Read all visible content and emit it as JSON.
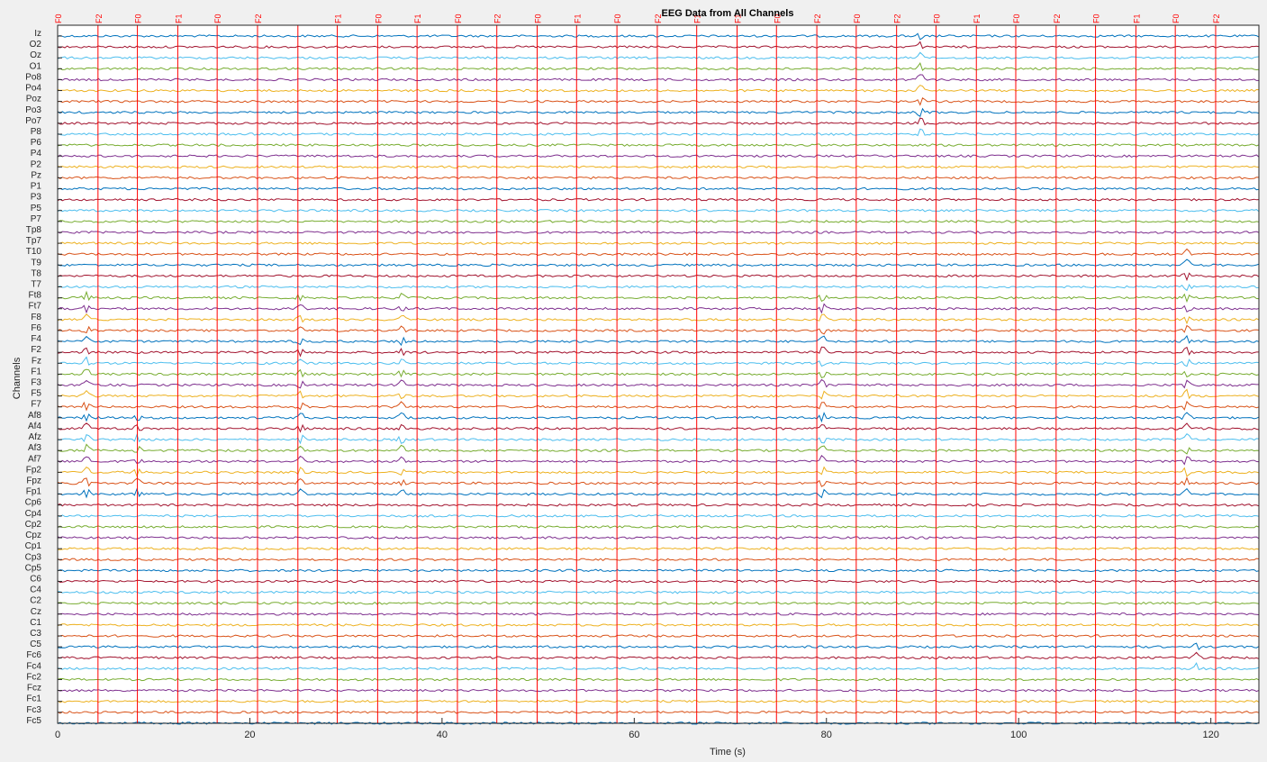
{
  "window": {
    "background": "#f0f0f0"
  },
  "chart_data": {
    "type": "line",
    "title": "EEG Data from All Channels",
    "xlabel": "Time (s)",
    "ylabel": "Channels",
    "xlim": [
      0,
      125
    ],
    "xticks": [
      0,
      20,
      40,
      60,
      80,
      100,
      120
    ],
    "grid": false,
    "legend": "none",
    "channels": [
      "Iz",
      "O2",
      "Oz",
      "O1",
      "Po8",
      "Po4",
      "Poz",
      "Po3",
      "Po7",
      "P8",
      "P6",
      "P4",
      "P2",
      "Pz",
      "P1",
      "P3",
      "P5",
      "P7",
      "Tp8",
      "Tp7",
      "T10",
      "T9",
      "T8",
      "T7",
      "Ft8",
      "Ft7",
      "F8",
      "F6",
      "F4",
      "F2",
      "Fz",
      "F1",
      "F3",
      "F5",
      "F7",
      "Af8",
      "Af4",
      "Afz",
      "Af3",
      "Af7",
      "Fp2",
      "Fpz",
      "Fp1",
      "Cp6",
      "Cp4",
      "Cp2",
      "Cpz",
      "Cp1",
      "Cp3",
      "Cp5",
      "C6",
      "C4",
      "C2",
      "Cz",
      "C1",
      "C3",
      "C5",
      "Fc6",
      "Fc4",
      "Fc2",
      "Fcz",
      "Fc1",
      "Fc3",
      "Fc5"
    ],
    "series_colors": [
      "#0072bd",
      "#a2142f",
      "#4dbeee",
      "#77ac30",
      "#7e2f8e",
      "#edb120",
      "#d95319"
    ],
    "markers": {
      "color": "#ff0000",
      "events": [
        {
          "t": 0.0,
          "label": "F0"
        },
        {
          "t": 4.2,
          "label": "F2"
        },
        {
          "t": 8.3,
          "label": "F0"
        },
        {
          "t": 12.5,
          "label": "F1"
        },
        {
          "t": 16.6,
          "label": "F0"
        },
        {
          "t": 20.8,
          "label": "F2"
        },
        {
          "t": 29.1,
          "label": "F1"
        },
        {
          "t": 33.3,
          "label": "F0"
        },
        {
          "t": 37.4,
          "label": "F1"
        },
        {
          "t": 41.6,
          "label": "F0"
        },
        {
          "t": 45.7,
          "label": "F2"
        },
        {
          "t": 49.9,
          "label": "F0"
        },
        {
          "t": 54.0,
          "label": "F1"
        },
        {
          "t": 58.2,
          "label": "F0"
        },
        {
          "t": 62.4,
          "label": "F2"
        },
        {
          "t": 66.5,
          "label": "F1"
        },
        {
          "t": 70.7,
          "label": "F1"
        },
        {
          "t": 74.8,
          "label": "F0"
        },
        {
          "t": 79.0,
          "label": "F2"
        },
        {
          "t": 83.1,
          "label": "F0"
        },
        {
          "t": 87.3,
          "label": "F2"
        },
        {
          "t": 91.4,
          "label": "F0"
        },
        {
          "t": 95.6,
          "label": "F1"
        },
        {
          "t": 99.7,
          "label": "F0"
        },
        {
          "t": 103.9,
          "label": "F2"
        },
        {
          "t": 108.0,
          "label": "F0"
        },
        {
          "t": 112.2,
          "label": "F1"
        },
        {
          "t": 116.3,
          "label": "F0"
        },
        {
          "t": 120.5,
          "label": "F2"
        }
      ],
      "unlabeled_lines": [
        25.0
      ]
    },
    "artifacts": [
      {
        "t": 3.0,
        "channels_from": 24,
        "channels_to": 42,
        "amp": 6
      },
      {
        "t": 8.3,
        "channels_from": 35,
        "channels_to": 42,
        "amp": 5
      },
      {
        "t": 25.3,
        "channels_from": 24,
        "channels_to": 42,
        "amp": 5
      },
      {
        "t": 35.8,
        "channels_from": 24,
        "channels_to": 42,
        "amp": 5
      },
      {
        "t": 79.6,
        "channels_from": 24,
        "channels_to": 42,
        "amp": 6
      },
      {
        "t": 89.8,
        "channels_from": 0,
        "channels_to": 9,
        "amp": 6
      },
      {
        "t": 117.5,
        "channels_from": 20,
        "channels_to": 42,
        "amp": 6
      },
      {
        "t": 118.5,
        "channels_from": 56,
        "channels_to": 58,
        "amp": 5
      }
    ]
  }
}
